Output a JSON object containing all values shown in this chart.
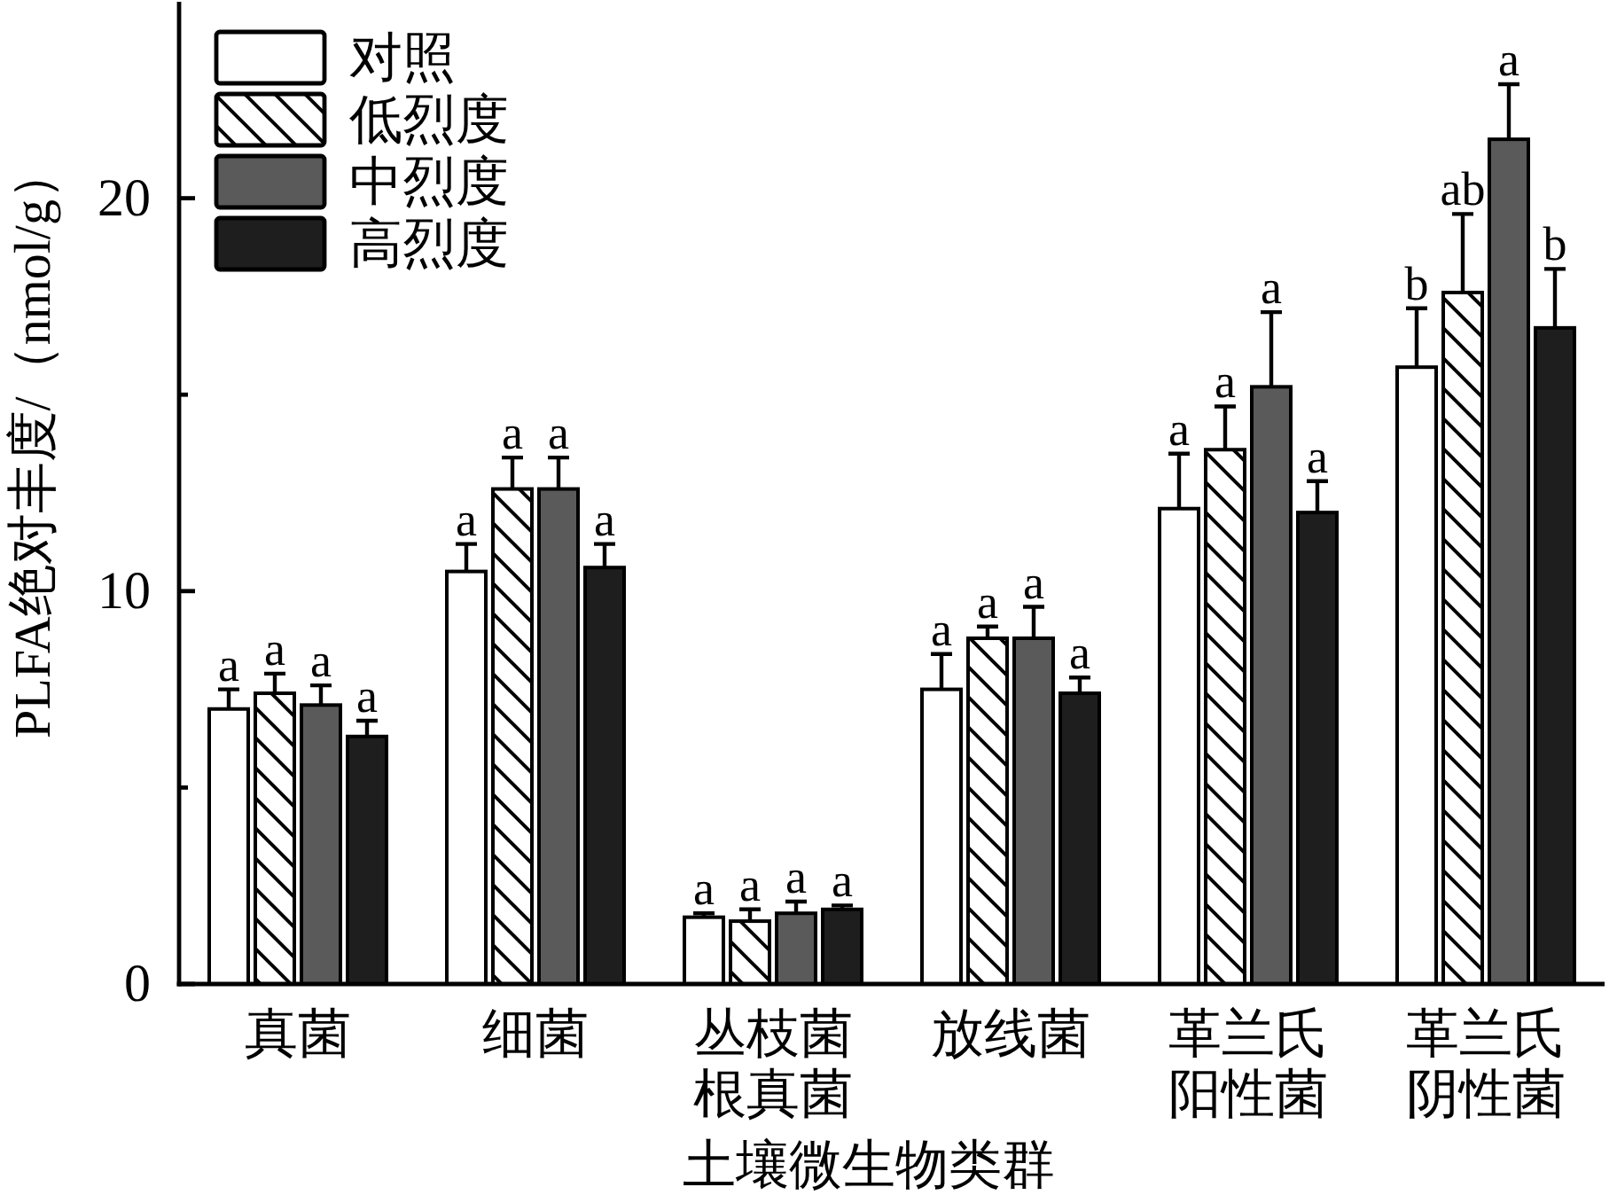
{
  "chart_data": {
    "type": "bar",
    "xlabel": "土壤微生物类群",
    "ylabel": "PLFA绝对丰度/（nmol/g）",
    "categories": [
      "真菌",
      "细菌",
      "丛枝菌根真菌",
      "放线菌",
      "革兰氏阳性菌",
      "革兰氏阴性菌"
    ],
    "series": [
      {
        "name": "对照",
        "color": "#ffffff",
        "values": [
          7.0,
          10.5,
          1.7,
          7.5,
          12.1,
          15.7
        ],
        "errors": [
          [
            7.0,
            7.5
          ],
          [
            10.5,
            11.2
          ],
          [
            1.7,
            1.8
          ],
          [
            7.5,
            8.4
          ],
          [
            12.1,
            13.5
          ],
          [
            15.7,
            17.2
          ]
        ],
        "value_labels": [
          "a",
          "a",
          "a",
          "a",
          "a",
          "b"
        ]
      },
      {
        "name": "低烈度",
        "color": "#000000",
        "values": [
          7.4,
          12.6,
          1.6,
          8.8,
          13.6,
          17.6
        ],
        "errors": [
          [
            7.4,
            7.9
          ],
          [
            12.6,
            13.4
          ],
          [
            1.6,
            1.9
          ],
          [
            8.8,
            9.1
          ],
          [
            13.6,
            14.7
          ],
          [
            17.6,
            19.6
          ]
        ],
        "value_labels": [
          "a",
          "a",
          "a",
          "a",
          "a",
          "ab"
        ]
      },
      {
        "name": "中烈度",
        "color": "#5a5a5a",
        "values": [
          7.1,
          12.6,
          1.8,
          8.8,
          15.2,
          21.5
        ],
        "errors": [
          [
            7.1,
            7.6
          ],
          [
            12.6,
            13.4
          ],
          [
            1.8,
            2.1
          ],
          [
            8.8,
            9.6
          ],
          [
            15.2,
            17.1
          ],
          [
            21.5,
            22.9
          ]
        ],
        "value_labels": [
          "a",
          "a",
          "a",
          "a",
          "a",
          "a"
        ]
      },
      {
        "name": "高烈度",
        "color": "#1e1e1e",
        "values": [
          6.3,
          10.6,
          1.9,
          7.4,
          12.0,
          16.7
        ],
        "errors": [
          [
            6.3,
            6.7
          ],
          [
            10.6,
            11.2
          ],
          [
            1.9,
            2.0
          ],
          [
            7.4,
            7.8
          ],
          [
            12.0,
            12.8
          ],
          [
            16.7,
            18.2
          ]
        ],
        "value_labels": [
          "a",
          "a",
          "a",
          "a",
          "a",
          "b"
        ]
      }
    ],
    "ylim": [
      0,
      25
    ],
    "yticks": [
      0,
      {
        "value": 5,
        "label": null
      },
      10,
      {
        "value": 15,
        "label": null
      },
      20
    ],
    "legend": "top left"
  }
}
